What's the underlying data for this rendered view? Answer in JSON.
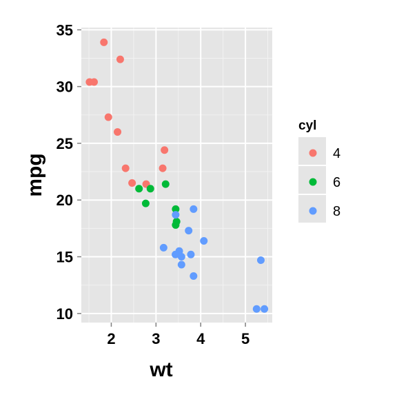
{
  "chart_data": {
    "type": "scatter",
    "title": "",
    "xlabel": "wt",
    "ylabel": "mpg",
    "xlim": [
      1.33,
      5.6
    ],
    "ylim": [
      9.2,
      35.2
    ],
    "x_ticks": [
      2,
      3,
      4,
      5
    ],
    "y_ticks": [
      10,
      15,
      20,
      25,
      30,
      35
    ],
    "grid": true,
    "legend": {
      "title": "cyl",
      "position": "right",
      "entries": [
        {
          "label": "4",
          "color": "#f8766d"
        },
        {
          "label": "6",
          "color": "#00ba38"
        },
        {
          "label": "8",
          "color": "#619cff"
        }
      ]
    },
    "series": [
      {
        "name": "4",
        "color": "#f8766d",
        "points": [
          [
            1.835,
            33.9
          ],
          [
            2.2,
            32.4
          ],
          [
            1.513,
            30.4
          ],
          [
            1.615,
            30.4
          ],
          [
            1.935,
            27.3
          ],
          [
            2.14,
            26.0
          ],
          [
            3.19,
            24.4
          ],
          [
            2.32,
            22.8
          ],
          [
            3.15,
            22.8
          ],
          [
            2.465,
            21.5
          ],
          [
            2.78,
            21.4
          ]
        ]
      },
      {
        "name": "6",
        "color": "#00ba38",
        "points": [
          [
            2.62,
            21.0
          ],
          [
            2.875,
            21.0
          ],
          [
            3.215,
            21.4
          ],
          [
            2.77,
            19.7
          ],
          [
            3.44,
            19.2
          ],
          [
            3.46,
            18.1
          ],
          [
            3.44,
            17.8
          ]
        ]
      },
      {
        "name": "8",
        "color": "#619cff",
        "points": [
          [
            3.84,
            19.2
          ],
          [
            3.44,
            18.7
          ],
          [
            3.73,
            17.3
          ],
          [
            4.07,
            16.4
          ],
          [
            3.17,
            15.8
          ],
          [
            3.52,
            15.5
          ],
          [
            3.78,
            15.2
          ],
          [
            3.435,
            15.2
          ],
          [
            3.57,
            15.0
          ],
          [
            5.345,
            14.7
          ],
          [
            3.57,
            14.3
          ],
          [
            3.84,
            13.3
          ],
          [
            5.25,
            10.4
          ],
          [
            5.424,
            10.4
          ]
        ]
      }
    ]
  }
}
